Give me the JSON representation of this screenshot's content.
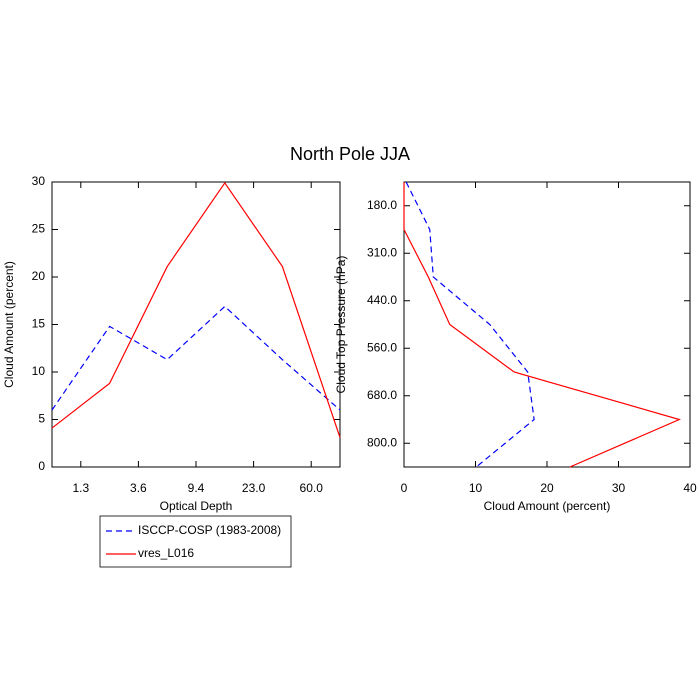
{
  "title": "North Pole JJA",
  "chart_data": [
    {
      "type": "line",
      "orientation": "vertical",
      "x_label": "Optical Depth",
      "y_label": "Cloud Amount (percent)",
      "x": [
        0,
        1,
        2,
        3,
        4,
        5
      ],
      "xlim": [
        0,
        5
      ],
      "xticks": [
        {
          "value": 0.5,
          "label": "1.3"
        },
        {
          "value": 1.5,
          "label": "3.6"
        },
        {
          "value": 2.5,
          "label": "9.4"
        },
        {
          "value": 3.5,
          "label": "23.0"
        },
        {
          "value": 4.5,
          "label": "60.0"
        }
      ],
      "ylim": [
        0,
        30
      ],
      "yticks": [
        0,
        5,
        10,
        15,
        20,
        25,
        30
      ],
      "legend": "below",
      "series": [
        {
          "name": "ISCCP-COSP (1983-2008)",
          "color": "#0000ff",
          "dash": "dashed",
          "values": [
            6.0,
            14.8,
            11.3,
            16.9,
            11.3,
            6.0
          ]
        },
        {
          "name": "vres_L016",
          "color": "#ff0000",
          "dash": "solid",
          "values": [
            4.1,
            8.8,
            21.1,
            29.9,
            21.1,
            3.1
          ]
        }
      ]
    },
    {
      "type": "line",
      "orientation": "horizontal",
      "x_label": "Cloud Amount (percent)",
      "y_label": "Cloud Top Pressure (hPa)",
      "y": [
        0,
        1,
        2,
        3,
        4,
        5,
        6
      ],
      "ylim": [
        6,
        0
      ],
      "yticks": [
        {
          "value": 0.5,
          "label": "180.0"
        },
        {
          "value": 1.5,
          "label": "310.0"
        },
        {
          "value": 2.5,
          "label": "440.0"
        },
        {
          "value": 3.5,
          "label": "560.0"
        },
        {
          "value": 4.5,
          "label": "680.0"
        },
        {
          "value": 5.5,
          "label": "800.0"
        }
      ],
      "xlim": [
        0,
        40
      ],
      "xticks": [
        0,
        10,
        20,
        30,
        40
      ],
      "series": [
        {
          "color": "#0000ff",
          "dash": "dashed",
          "values": [
            0.3,
            3.6,
            4.1,
            12.0,
            17.3,
            18.2,
            10.1
          ]
        },
        {
          "color": "#ff0000",
          "dash": "solid",
          "values": [
            0,
            0,
            3.4,
            6.4,
            15.4,
            38.5,
            23.2
          ]
        }
      ]
    }
  ]
}
